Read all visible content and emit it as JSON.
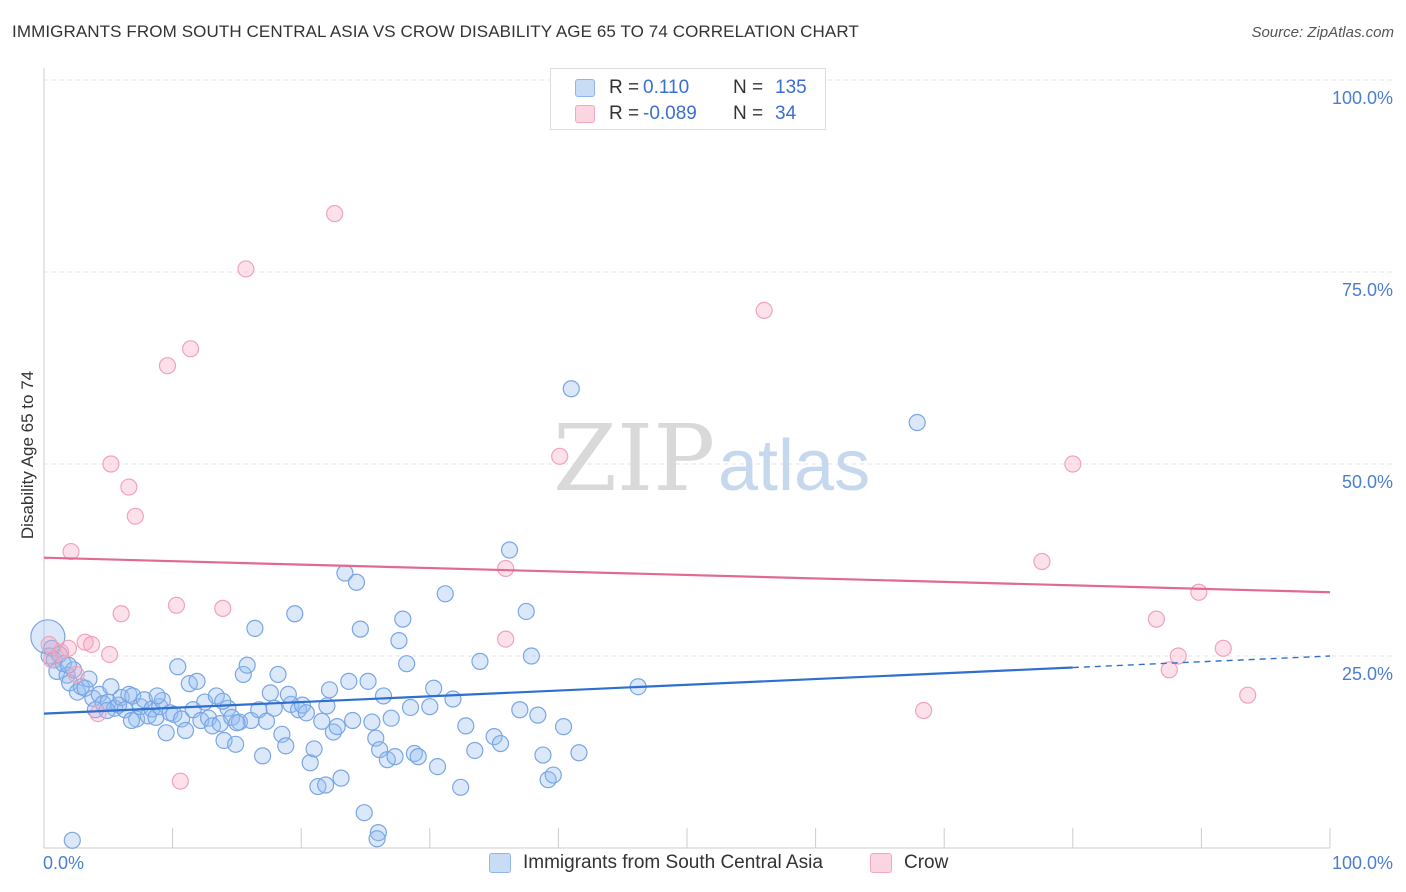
{
  "title": "IMMIGRANTS FROM SOUTH CENTRAL ASIA VS CROW DISABILITY AGE 65 TO 74 CORRELATION CHART",
  "source": "Source: ZipAtlas.com",
  "watermark": {
    "part1": "ZIP",
    "part2": "atlas"
  },
  "stats": [
    {
      "r_label": "R =",
      "r_value": "0.110",
      "n_label": "N =",
      "n_value": "135",
      "color": "#8fb6ec",
      "fill": "#c9dcf5"
    },
    {
      "r_label": "R =",
      "r_value": "-0.089",
      "n_label": "N =",
      "n_value": "34",
      "color": "#f2a8bf",
      "fill": "#fbd5e0"
    }
  ],
  "legend": [
    {
      "label": "Immigrants from South Central Asia",
      "color": "#8fb6ec",
      "fill": "#c9dcf5"
    },
    {
      "label": "Crow",
      "color": "#f2a8bf",
      "fill": "#fbd5e0"
    }
  ],
  "chart_data": {
    "type": "scatter",
    "title": "IMMIGRANTS FROM SOUTH CENTRAL ASIA VS CROW DISABILITY AGE 65 TO 74 CORRELATION CHART",
    "xlabel": "",
    "ylabel": "Disability Age 65 to 74",
    "xlim": [
      0,
      100
    ],
    "ylim": [
      0,
      100
    ],
    "x_tick_labels": [
      "0.0%",
      "100.0%"
    ],
    "y_ticks": [
      25,
      50,
      75,
      100
    ],
    "y_tick_labels": [
      "25.0%",
      "50.0%",
      "75.0%",
      "100.0%"
    ],
    "grid": true,
    "legend_position": "bottom",
    "series": [
      {
        "name": "Immigrants from South Central Asia",
        "color": "#5b93e0",
        "trend": {
          "x": [
            0,
            80
          ],
          "y": [
            17.5,
            23.5
          ],
          "dashed_to": [
            100,
            25.0
          ]
        },
        "points": [
          [
            0.3,
            27.5
          ],
          [
            0.4,
            25.0
          ],
          [
            0.6,
            26.0
          ],
          [
            0.8,
            24.5
          ],
          [
            1.0,
            23.0
          ],
          [
            1.2,
            25.2
          ],
          [
            1.5,
            24.0
          ],
          [
            1.8,
            22.5
          ],
          [
            2.0,
            21.5
          ],
          [
            2.3,
            23.2
          ],
          [
            2.6,
            20.3
          ],
          [
            2.9,
            21.0
          ],
          [
            3.2,
            20.8
          ],
          [
            3.5,
            22.0
          ],
          [
            3.8,
            19.5
          ],
          [
            4.0,
            18.0
          ],
          [
            4.3,
            20.0
          ],
          [
            4.6,
            18.8
          ],
          [
            5.0,
            19.0
          ],
          [
            5.2,
            21.0
          ],
          [
            5.5,
            18.2
          ],
          [
            5.8,
            18.6
          ],
          [
            6.0,
            19.6
          ],
          [
            6.3,
            18.0
          ],
          [
            6.6,
            20.0
          ],
          [
            6.9,
            19.8
          ],
          [
            7.2,
            16.8
          ],
          [
            7.5,
            18.4
          ],
          [
            7.8,
            19.3
          ],
          [
            8.1,
            17.2
          ],
          [
            8.4,
            18.1
          ],
          [
            8.7,
            17.0
          ],
          [
            9.0,
            18.4
          ],
          [
            9.2,
            19.2
          ],
          [
            9.5,
            15.0
          ],
          [
            9.8,
            17.6
          ],
          [
            10.1,
            17.4
          ],
          [
            10.4,
            23.6
          ],
          [
            10.7,
            16.8
          ],
          [
            11.0,
            15.3
          ],
          [
            11.3,
            21.4
          ],
          [
            11.6,
            18.0
          ],
          [
            11.9,
            21.7
          ],
          [
            12.2,
            16.6
          ],
          [
            12.5,
            19.0
          ],
          [
            12.8,
            16.9
          ],
          [
            13.1,
            15.9
          ],
          [
            13.4,
            19.8
          ],
          [
            13.7,
            16.2
          ],
          [
            14.0,
            14.0
          ],
          [
            14.3,
            18.2
          ],
          [
            14.6,
            17.0
          ],
          [
            14.9,
            13.5
          ],
          [
            15.2,
            16.4
          ],
          [
            15.5,
            22.6
          ],
          [
            15.8,
            23.8
          ],
          [
            16.1,
            16.6
          ],
          [
            16.4,
            28.6
          ],
          [
            16.7,
            18.0
          ],
          [
            17.0,
            12.0
          ],
          [
            17.3,
            16.5
          ],
          [
            17.6,
            20.2
          ],
          [
            17.9,
            18.2
          ],
          [
            18.2,
            22.6
          ],
          [
            18.5,
            14.8
          ],
          [
            18.8,
            13.3
          ],
          [
            19.2,
            18.7
          ],
          [
            19.5,
            30.5
          ],
          [
            19.8,
            18.0
          ],
          [
            20.1,
            18.6
          ],
          [
            20.4,
            17.6
          ],
          [
            20.7,
            11.1
          ],
          [
            21.0,
            12.9
          ],
          [
            21.3,
            8.0
          ],
          [
            21.6,
            16.5
          ],
          [
            21.9,
            8.2
          ],
          [
            22.2,
            20.6
          ],
          [
            22.5,
            15.1
          ],
          [
            22.8,
            15.8
          ],
          [
            23.1,
            9.1
          ],
          [
            23.4,
            35.8
          ],
          [
            23.7,
            21.7
          ],
          [
            24.0,
            16.6
          ],
          [
            24.3,
            34.6
          ],
          [
            24.6,
            28.5
          ],
          [
            24.9,
            4.6
          ],
          [
            25.2,
            21.7
          ],
          [
            25.5,
            16.4
          ],
          [
            25.8,
            14.3
          ],
          [
            26.1,
            12.8
          ],
          [
            26.4,
            19.8
          ],
          [
            26.7,
            11.5
          ],
          [
            27.0,
            16.9
          ],
          [
            27.3,
            11.9
          ],
          [
            27.6,
            27.0
          ],
          [
            27.9,
            29.8
          ],
          [
            28.2,
            24.0
          ],
          [
            28.5,
            18.3
          ],
          [
            28.8,
            12.3
          ],
          [
            29.1,
            11.9
          ],
          [
            26.0,
            2.0
          ],
          [
            25.9,
            1.2
          ],
          [
            30.0,
            18.4
          ],
          [
            30.6,
            10.6
          ],
          [
            31.2,
            33.1
          ],
          [
            31.8,
            19.4
          ],
          [
            32.4,
            7.9
          ],
          [
            32.8,
            15.9
          ],
          [
            33.5,
            12.7
          ],
          [
            33.9,
            24.3
          ],
          [
            35.0,
            14.5
          ],
          [
            36.2,
            38.8
          ],
          [
            35.5,
            13.6
          ],
          [
            37.0,
            18.0
          ],
          [
            37.5,
            30.8
          ],
          [
            37.9,
            25.0
          ],
          [
            38.4,
            17.3
          ],
          [
            38.8,
            12.1
          ],
          [
            39.2,
            8.9
          ],
          [
            39.6,
            9.5
          ],
          [
            40.4,
            15.8
          ],
          [
            41.6,
            12.4
          ],
          [
            41.0,
            59.8
          ],
          [
            46.2,
            21.0
          ],
          [
            67.9,
            55.4
          ],
          [
            2.2,
            1.0
          ],
          [
            1.9,
            23.8
          ],
          [
            4.9,
            17.9
          ],
          [
            6.8,
            16.6
          ],
          [
            8.8,
            19.8
          ],
          [
            13.9,
            19.1
          ],
          [
            15.0,
            16.3
          ],
          [
            19.0,
            20.0
          ],
          [
            22.0,
            18.5
          ],
          [
            30.3,
            20.8
          ]
        ]
      },
      {
        "name": "Crow",
        "color": "#ec86a6",
        "trend": {
          "x": [
            0,
            100
          ],
          "y": [
            37.8,
            33.3
          ]
        },
        "points": [
          [
            0.4,
            26.5
          ],
          [
            1.3,
            25.5
          ],
          [
            1.9,
            26.0
          ],
          [
            2.1,
            38.6
          ],
          [
            2.5,
            22.6
          ],
          [
            3.2,
            26.8
          ],
          [
            3.7,
            26.5
          ],
          [
            4.2,
            17.5
          ],
          [
            5.1,
            25.2
          ],
          [
            5.2,
            50.0
          ],
          [
            6.0,
            30.5
          ],
          [
            6.6,
            47.0
          ],
          [
            7.1,
            43.2
          ],
          [
            9.6,
            62.8
          ],
          [
            10.3,
            31.6
          ],
          [
            10.6,
            8.7
          ],
          [
            11.4,
            65.0
          ],
          [
            13.9,
            31.2
          ],
          [
            15.7,
            75.4
          ],
          [
            22.6,
            82.6
          ],
          [
            35.9,
            36.4
          ],
          [
            35.9,
            27.2
          ],
          [
            40.1,
            51.0
          ],
          [
            56.0,
            70.0
          ],
          [
            68.4,
            17.9
          ],
          [
            77.6,
            37.3
          ],
          [
            80.0,
            50.0
          ],
          [
            86.5,
            29.8
          ],
          [
            87.5,
            23.2
          ],
          [
            88.2,
            25.0
          ],
          [
            89.8,
            33.3
          ],
          [
            91.7,
            26.0
          ],
          [
            93.6,
            19.9
          ],
          [
            0.6,
            24.5
          ]
        ]
      }
    ]
  }
}
